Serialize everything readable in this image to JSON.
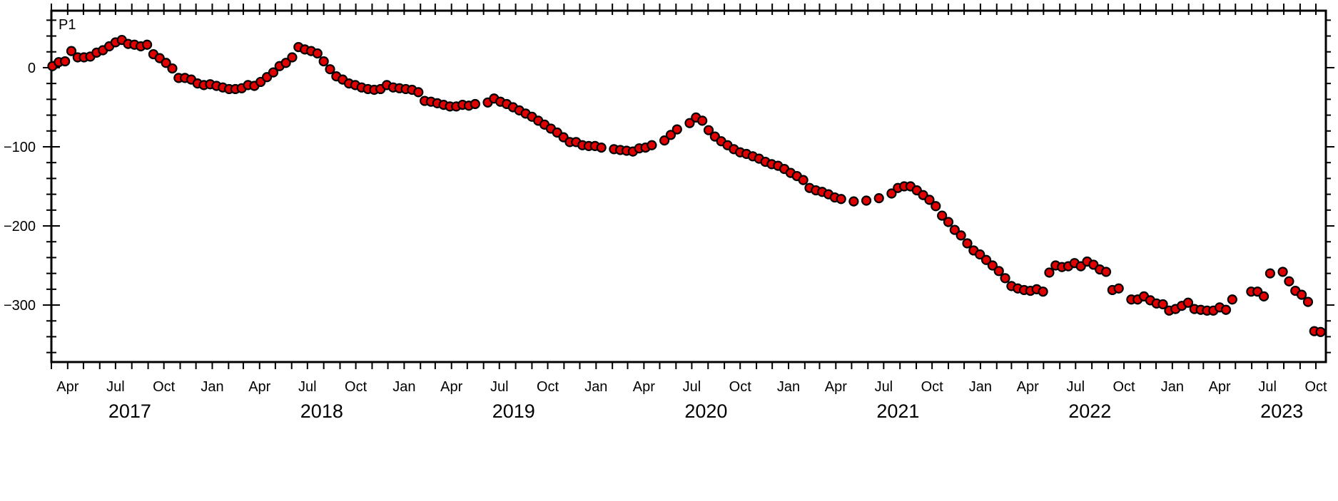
{
  "chart_data": {
    "type": "scatter",
    "panel_label": "P1",
    "marker_fill": "#e00000",
    "marker_stroke": "#000000",
    "yticks": [
      0,
      -100,
      -200,
      -300
    ],
    "ylim": [
      -372,
      72
    ],
    "xlim": [
      "2017-03-01",
      "2023-10-20"
    ],
    "month_ticks": [
      {
        "label": "Apr",
        "date": "2017-04-01"
      },
      {
        "label": "Jul",
        "date": "2017-07-01"
      },
      {
        "label": "Oct",
        "date": "2017-10-01"
      },
      {
        "label": "Jan",
        "date": "2018-01-01"
      },
      {
        "label": "Apr",
        "date": "2018-04-01"
      },
      {
        "label": "Jul",
        "date": "2018-07-01"
      },
      {
        "label": "Oct",
        "date": "2018-10-01"
      },
      {
        "label": "Jan",
        "date": "2019-01-01"
      },
      {
        "label": "Apr",
        "date": "2019-04-01"
      },
      {
        "label": "Jul",
        "date": "2019-07-01"
      },
      {
        "label": "Oct",
        "date": "2019-10-01"
      },
      {
        "label": "Jan",
        "date": "2020-01-01"
      },
      {
        "label": "Apr",
        "date": "2020-04-01"
      },
      {
        "label": "Jul",
        "date": "2020-07-01"
      },
      {
        "label": "Oct",
        "date": "2020-10-01"
      },
      {
        "label": "Jan",
        "date": "2021-01-01"
      },
      {
        "label": "Apr",
        "date": "2021-04-01"
      },
      {
        "label": "Jul",
        "date": "2021-07-01"
      },
      {
        "label": "Oct",
        "date": "2021-10-01"
      },
      {
        "label": "Jan",
        "date": "2022-01-01"
      },
      {
        "label": "Apr",
        "date": "2022-04-01"
      },
      {
        "label": "Jul",
        "date": "2022-07-01"
      },
      {
        "label": "Oct",
        "date": "2022-10-01"
      },
      {
        "label": "Jan",
        "date": "2023-01-01"
      },
      {
        "label": "Apr",
        "date": "2023-04-01"
      },
      {
        "label": "Jul",
        "date": "2023-07-01"
      },
      {
        "label": "Oct",
        "date": "2023-10-01"
      }
    ],
    "year_labels": [
      {
        "label": "2017",
        "date": "2017-07-01"
      },
      {
        "label": "2018",
        "date": "2018-07-01"
      },
      {
        "label": "2019",
        "date": "2019-07-01"
      },
      {
        "label": "2020",
        "date": "2020-07-01"
      },
      {
        "label": "2021",
        "date": "2021-07-01"
      },
      {
        "label": "2022",
        "date": "2022-07-01"
      },
      {
        "label": "2023",
        "date": "2023-07-01"
      }
    ],
    "points": [
      [
        "2017-03-03",
        2
      ],
      [
        "2017-03-15",
        7
      ],
      [
        "2017-03-27",
        8
      ],
      [
        "2017-04-08",
        21
      ],
      [
        "2017-04-20",
        13
      ],
      [
        "2017-05-02",
        13
      ],
      [
        "2017-05-14",
        14
      ],
      [
        "2017-05-26",
        19
      ],
      [
        "2017-06-07",
        22
      ],
      [
        "2017-06-19",
        27
      ],
      [
        "2017-07-01",
        32
      ],
      [
        "2017-07-13",
        35
      ],
      [
        "2017-07-25",
        30
      ],
      [
        "2017-08-06",
        29
      ],
      [
        "2017-08-18",
        27
      ],
      [
        "2017-08-30",
        29
      ],
      [
        "2017-09-11",
        17
      ],
      [
        "2017-09-23",
        12
      ],
      [
        "2017-10-05",
        6
      ],
      [
        "2017-10-17",
        -1
      ],
      [
        "2017-10-29",
        -13
      ],
      [
        "2017-11-10",
        -13
      ],
      [
        "2017-11-22",
        -15
      ],
      [
        "2017-12-04",
        -20
      ],
      [
        "2017-12-16",
        -22
      ],
      [
        "2017-12-28",
        -21
      ],
      [
        "2018-01-09",
        -23
      ],
      [
        "2018-01-21",
        -25
      ],
      [
        "2018-02-02",
        -27
      ],
      [
        "2018-02-14",
        -27
      ],
      [
        "2018-02-26",
        -26
      ],
      [
        "2018-03-10",
        -22
      ],
      [
        "2018-03-22",
        -23
      ],
      [
        "2018-04-03",
        -18
      ],
      [
        "2018-04-15",
        -12
      ],
      [
        "2018-04-27",
        -6
      ],
      [
        "2018-05-09",
        2
      ],
      [
        "2018-05-21",
        6
      ],
      [
        "2018-06-02",
        13
      ],
      [
        "2018-06-14",
        26
      ],
      [
        "2018-06-26",
        23
      ],
      [
        "2018-07-08",
        21
      ],
      [
        "2018-07-20",
        18
      ],
      [
        "2018-08-01",
        8
      ],
      [
        "2018-08-13",
        -2
      ],
      [
        "2018-08-25",
        -11
      ],
      [
        "2018-09-06",
        -15
      ],
      [
        "2018-09-18",
        -20
      ],
      [
        "2018-09-30",
        -22
      ],
      [
        "2018-10-12",
        -25
      ],
      [
        "2018-10-24",
        -27
      ],
      [
        "2018-11-05",
        -28
      ],
      [
        "2018-11-17",
        -27
      ],
      [
        "2018-11-29",
        -22
      ],
      [
        "2018-12-11",
        -25
      ],
      [
        "2018-12-23",
        -26
      ],
      [
        "2019-01-04",
        -27
      ],
      [
        "2019-01-16",
        -28
      ],
      [
        "2019-01-28",
        -31
      ],
      [
        "2019-02-09",
        -42
      ],
      [
        "2019-02-21",
        -43
      ],
      [
        "2019-03-05",
        -45
      ],
      [
        "2019-03-17",
        -47
      ],
      [
        "2019-03-29",
        -49
      ],
      [
        "2019-04-10",
        -49
      ],
      [
        "2019-04-22",
        -47
      ],
      [
        "2019-05-04",
        -48
      ],
      [
        "2019-05-16",
        -46
      ],
      [
        "2019-06-09",
        -44
      ],
      [
        "2019-06-21",
        -39
      ],
      [
        "2019-07-03",
        -43
      ],
      [
        "2019-07-15",
        -46
      ],
      [
        "2019-07-27",
        -50
      ],
      [
        "2019-08-08",
        -54
      ],
      [
        "2019-08-20",
        -58
      ],
      [
        "2019-09-01",
        -62
      ],
      [
        "2019-09-13",
        -67
      ],
      [
        "2019-09-25",
        -72
      ],
      [
        "2019-10-07",
        -77
      ],
      [
        "2019-10-19",
        -82
      ],
      [
        "2019-10-31",
        -88
      ],
      [
        "2019-11-12",
        -94
      ],
      [
        "2019-11-24",
        -94
      ],
      [
        "2019-12-06",
        -98
      ],
      [
        "2019-12-18",
        -99
      ],
      [
        "2019-12-30",
        -99
      ],
      [
        "2020-01-11",
        -101
      ],
      [
        "2020-02-04",
        -103
      ],
      [
        "2020-02-16",
        -104
      ],
      [
        "2020-02-28",
        -105
      ],
      [
        "2020-03-11",
        -106
      ],
      [
        "2020-03-23",
        -102
      ],
      [
        "2020-04-04",
        -101
      ],
      [
        "2020-04-16",
        -98
      ],
      [
        "2020-05-10",
        -92
      ],
      [
        "2020-05-22",
        -85
      ],
      [
        "2020-06-03",
        -78
      ],
      [
        "2020-06-27",
        -70
      ],
      [
        "2020-07-09",
        -63
      ],
      [
        "2020-07-21",
        -67
      ],
      [
        "2020-08-02",
        -79
      ],
      [
        "2020-08-14",
        -87
      ],
      [
        "2020-08-26",
        -93
      ],
      [
        "2020-09-07",
        -98
      ],
      [
        "2020-09-19",
        -103
      ],
      [
        "2020-10-01",
        -107
      ],
      [
        "2020-10-13",
        -109
      ],
      [
        "2020-10-25",
        -112
      ],
      [
        "2020-11-06",
        -115
      ],
      [
        "2020-11-18",
        -119
      ],
      [
        "2020-11-30",
        -122
      ],
      [
        "2020-12-12",
        -124
      ],
      [
        "2020-12-24",
        -128
      ],
      [
        "2021-01-05",
        -133
      ],
      [
        "2021-01-17",
        -137
      ],
      [
        "2021-01-29",
        -142
      ],
      [
        "2021-02-10",
        -152
      ],
      [
        "2021-02-22",
        -155
      ],
      [
        "2021-03-06",
        -157
      ],
      [
        "2021-03-18",
        -160
      ],
      [
        "2021-03-30",
        -164
      ],
      [
        "2021-04-11",
        -166
      ],
      [
        "2021-05-05",
        -169
      ],
      [
        "2021-05-29",
        -168
      ],
      [
        "2021-06-22",
        -165
      ],
      [
        "2021-07-16",
        -159
      ],
      [
        "2021-07-28",
        -152
      ],
      [
        "2021-08-09",
        -150
      ],
      [
        "2021-08-21",
        -150
      ],
      [
        "2021-09-02",
        -155
      ],
      [
        "2021-09-14",
        -161
      ],
      [
        "2021-09-26",
        -167
      ],
      [
        "2021-10-08",
        -175
      ],
      [
        "2021-10-20",
        -187
      ],
      [
        "2021-11-01",
        -195
      ],
      [
        "2021-11-13",
        -205
      ],
      [
        "2021-11-25",
        -212
      ],
      [
        "2021-12-07",
        -222
      ],
      [
        "2021-12-19",
        -231
      ],
      [
        "2021-12-31",
        -236
      ],
      [
        "2022-01-12",
        -243
      ],
      [
        "2022-01-24",
        -250
      ],
      [
        "2022-02-05",
        -257
      ],
      [
        "2022-02-17",
        -266
      ],
      [
        "2022-03-01",
        -276
      ],
      [
        "2022-03-13",
        -279
      ],
      [
        "2022-03-25",
        -281
      ],
      [
        "2022-04-06",
        -282
      ],
      [
        "2022-04-18",
        -280
      ],
      [
        "2022-04-30",
        -283
      ],
      [
        "2022-05-12",
        -259
      ],
      [
        "2022-05-24",
        -250
      ],
      [
        "2022-06-05",
        -252
      ],
      [
        "2022-06-17",
        -251
      ],
      [
        "2022-06-29",
        -247
      ],
      [
        "2022-07-11",
        -251
      ],
      [
        "2022-07-23",
        -245
      ],
      [
        "2022-08-04",
        -249
      ],
      [
        "2022-08-16",
        -255
      ],
      [
        "2022-08-28",
        -258
      ],
      [
        "2022-09-09",
        -281
      ],
      [
        "2022-09-21",
        -279
      ],
      [
        "2022-10-15",
        -293
      ],
      [
        "2022-10-27",
        -293
      ],
      [
        "2022-11-08",
        -289
      ],
      [
        "2022-11-20",
        -294
      ],
      [
        "2022-12-02",
        -298
      ],
      [
        "2022-12-14",
        -299
      ],
      [
        "2022-12-26",
        -307
      ],
      [
        "2023-01-07",
        -305
      ],
      [
        "2023-01-19",
        -301
      ],
      [
        "2023-01-31",
        -297
      ],
      [
        "2023-02-12",
        -305
      ],
      [
        "2023-02-24",
        -306
      ],
      [
        "2023-03-08",
        -307
      ],
      [
        "2023-03-20",
        -307
      ],
      [
        "2023-04-01",
        -303
      ],
      [
        "2023-04-13",
        -306
      ],
      [
        "2023-04-25",
        -293
      ],
      [
        "2023-05-31",
        -283
      ],
      [
        "2023-06-12",
        -283
      ],
      [
        "2023-06-24",
        -289
      ],
      [
        "2023-07-06",
        -260
      ],
      [
        "2023-07-30",
        -258
      ],
      [
        "2023-08-11",
        -270
      ],
      [
        "2023-08-23",
        -282
      ],
      [
        "2023-09-04",
        -287
      ],
      [
        "2023-09-16",
        -296
      ],
      [
        "2023-09-28",
        -333
      ],
      [
        "2023-10-10",
        -334
      ]
    ]
  }
}
